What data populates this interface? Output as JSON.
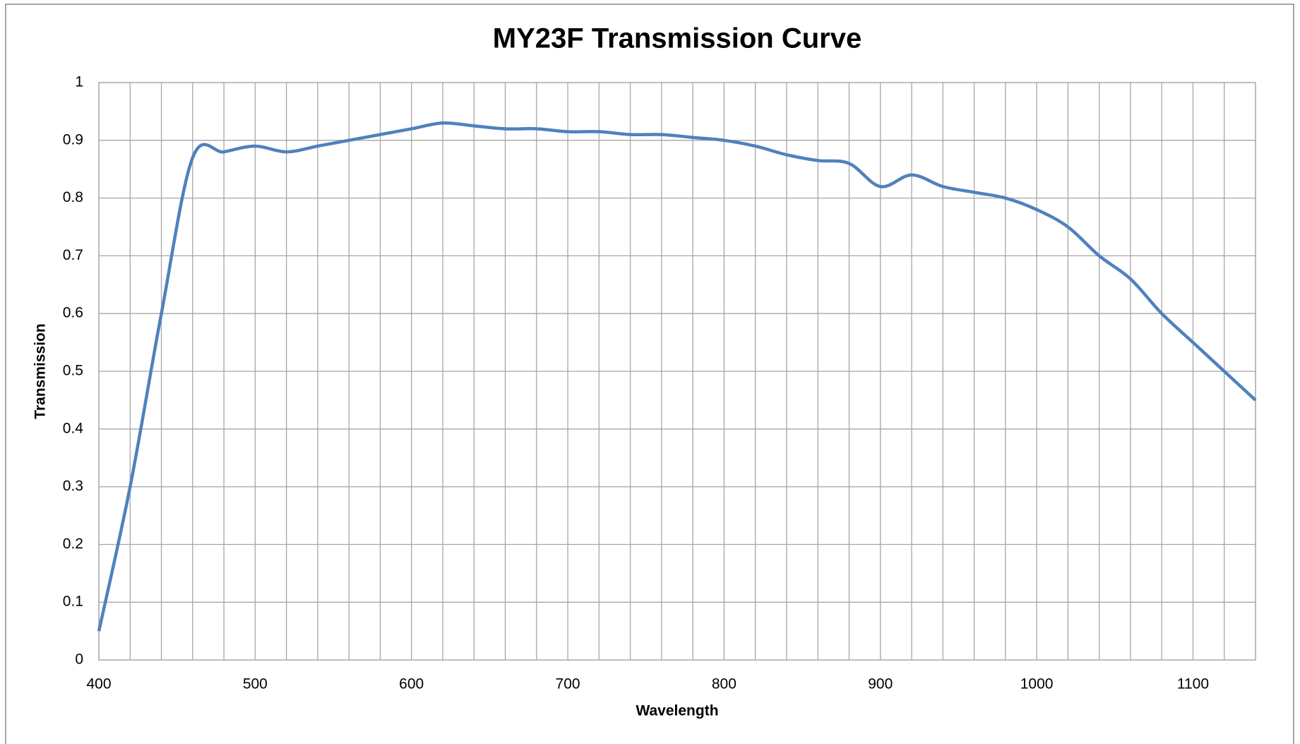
{
  "chart_data": {
    "type": "line",
    "title": "MY23F Transmission Curve",
    "x_label": "Wavelength",
    "y_label": "Transmission",
    "x": [
      400,
      420,
      440,
      460,
      480,
      500,
      520,
      540,
      560,
      580,
      600,
      620,
      640,
      660,
      680,
      700,
      720,
      740,
      760,
      780,
      800,
      820,
      840,
      860,
      880,
      900,
      920,
      940,
      960,
      980,
      1000,
      1020,
      1040,
      1060,
      1080,
      1100,
      1120,
      1140
    ],
    "series": [
      {
        "name": "Transmission",
        "color": "#4f81bd",
        "values": [
          0.05,
          0.3,
          0.6,
          0.87,
          0.88,
          0.89,
          0.88,
          0.89,
          0.9,
          0.91,
          0.92,
          0.93,
          0.925,
          0.92,
          0.92,
          0.915,
          0.915,
          0.91,
          0.91,
          0.905,
          0.9,
          0.89,
          0.875,
          0.865,
          0.86,
          0.82,
          0.84,
          0.82,
          0.81,
          0.8,
          0.78,
          0.75,
          0.7,
          0.66,
          0.6,
          0.55,
          0.5,
          0.45
        ]
      }
    ],
    "xlim": [
      400,
      1140
    ],
    "xticks": [
      400,
      500,
      600,
      700,
      800,
      900,
      1000,
      1100
    ],
    "xminorticks": [
      420,
      440,
      460,
      480,
      520,
      540,
      560,
      580,
      620,
      640,
      660,
      680,
      720,
      740,
      760,
      780,
      820,
      840,
      860,
      880,
      920,
      940,
      960,
      980,
      1020,
      1040,
      1060,
      1080,
      1120,
      1140
    ],
    "ylim": [
      0,
      1
    ],
    "yticks": [
      0,
      0.1,
      0.2,
      0.3,
      0.4,
      0.5,
      0.6,
      0.7,
      0.8,
      0.9,
      1
    ],
    "grid": true
  }
}
